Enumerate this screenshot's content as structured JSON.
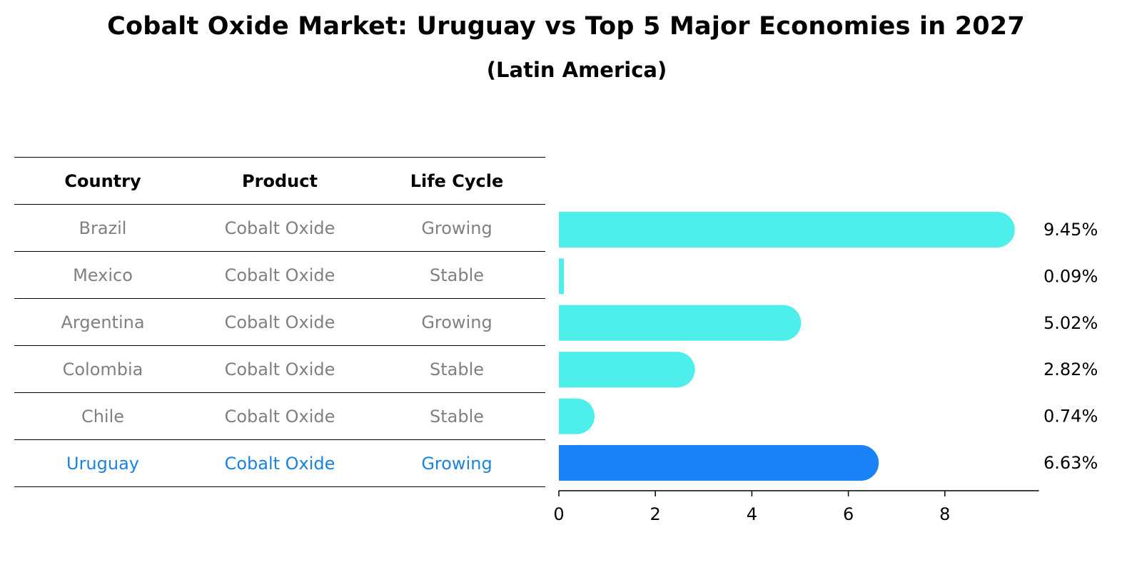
{
  "title": "Cobalt Oxide Market: Uruguay vs Top 5 Major Economies in 2027",
  "subtitle": "(Latin America)",
  "table": {
    "headers": [
      "Country",
      "Product",
      "Life Cycle"
    ],
    "rows": [
      {
        "country": "Brazil",
        "product": "Cobalt Oxide",
        "life_cycle": "Growing",
        "highlight": false
      },
      {
        "country": "Mexico",
        "product": "Cobalt Oxide",
        "life_cycle": "Stable",
        "highlight": false
      },
      {
        "country": "Argentina",
        "product": "Cobalt Oxide",
        "life_cycle": "Growing",
        "highlight": false
      },
      {
        "country": "Colombia",
        "product": "Cobalt Oxide",
        "life_cycle": "Stable",
        "highlight": false
      },
      {
        "country": "Chile",
        "product": "Cobalt Oxide",
        "life_cycle": "Stable",
        "highlight": false
      },
      {
        "country": "Uruguay",
        "product": "Cobalt Oxide",
        "life_cycle": "Growing",
        "highlight": true
      }
    ]
  },
  "colors": {
    "bar": "#4eeeea",
    "highlight_bar": "#1a82f7",
    "highlight_text": "#1a82df",
    "muted_text": "#808080"
  },
  "chart_data": {
    "type": "bar",
    "orientation": "horizontal",
    "categories": [
      "Brazil",
      "Mexico",
      "Argentina",
      "Colombia",
      "Chile",
      "Uruguay"
    ],
    "values": [
      9.45,
      0.09,
      5.02,
      2.82,
      0.74,
      6.63
    ],
    "value_labels": [
      "9.45%",
      "0.09%",
      "5.02%",
      "2.82%",
      "0.74%",
      "6.63%"
    ],
    "highlight_category": "Uruguay",
    "xlim": [
      0,
      9.95
    ],
    "xticks": [
      0,
      2,
      4,
      6,
      8
    ],
    "grid": false,
    "legend": "none",
    "title": "Cobalt Oxide Market: Uruguay vs Top 5 Major Economies in 2027",
    "xlabel": "",
    "ylabel": ""
  }
}
